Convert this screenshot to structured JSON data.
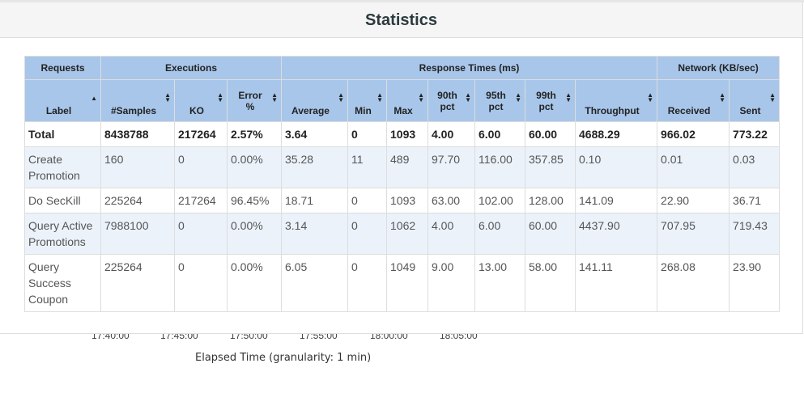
{
  "panel": {
    "title": "Statistics"
  },
  "groups": {
    "requests": "Requests",
    "executions": "Executions",
    "response_times": "Response Times (ms)",
    "network": "Network (KB/sec)"
  },
  "columns": {
    "label": "Label",
    "samples": "#Samples",
    "ko": "KO",
    "error_1": "Error",
    "error_2": "%",
    "average": "Average",
    "min": "Min",
    "max": "Max",
    "p90_1": "90th",
    "p90_2": "pct",
    "p95_1": "95th",
    "p95_2": "pct",
    "p99_1": "99th",
    "p99_2": "pct",
    "throughput": "Throughput",
    "received": "Received",
    "sent": "Sent"
  },
  "total": {
    "label": "Total",
    "samples": "8438788",
    "ko": "217264",
    "error": "2.57%",
    "average": "3.64",
    "min": "0",
    "max": "1093",
    "p90": "4.00",
    "p95": "6.00",
    "p99": "60.00",
    "throughput": "4688.29",
    "received": "966.02",
    "sent": "773.22"
  },
  "rows": [
    {
      "label_1": "Create",
      "label_2": "Promotion",
      "samples": "160",
      "ko": "0",
      "error": "0.00%",
      "average": "35.28",
      "min": "11",
      "max": "489",
      "p90": "97.70",
      "p95": "116.00",
      "p99": "357.85",
      "throughput": "0.10",
      "received": "0.01",
      "sent": "0.03"
    },
    {
      "label_1": "Do SecKill",
      "samples": "225264",
      "ko": "217264",
      "error": "96.45%",
      "average": "18.71",
      "min": "0",
      "max": "1093",
      "p90": "63.00",
      "p95": "102.00",
      "p99": "128.00",
      "throughput": "141.09",
      "received": "22.90",
      "sent": "36.71"
    },
    {
      "label_1": "Query Active",
      "label_2": "Promotions",
      "samples": "7988100",
      "ko": "0",
      "error": "0.00%",
      "average": "3.14",
      "min": "0",
      "max": "1062",
      "p90": "4.00",
      "p95": "6.00",
      "p99": "60.00",
      "throughput": "4437.90",
      "received": "707.95",
      "sent": "719.43"
    },
    {
      "label_1": "Query",
      "label_2": "Success",
      "label_3": "Coupon",
      "samples": "225264",
      "ko": "0",
      "error": "0.00%",
      "average": "6.05",
      "min": "0",
      "max": "1049",
      "p90": "9.00",
      "p95": "13.00",
      "p99": "58.00",
      "throughput": "141.11",
      "received": "268.08",
      "sent": "23.90"
    }
  ],
  "background_chart": {
    "ticks": [
      "17:40:00",
      "17:45:00",
      "17:50:00",
      "17:55:00",
      "18:00:00",
      "18:05:00"
    ],
    "xlabel": "Elapsed Time (granularity: 1 min)"
  }
}
